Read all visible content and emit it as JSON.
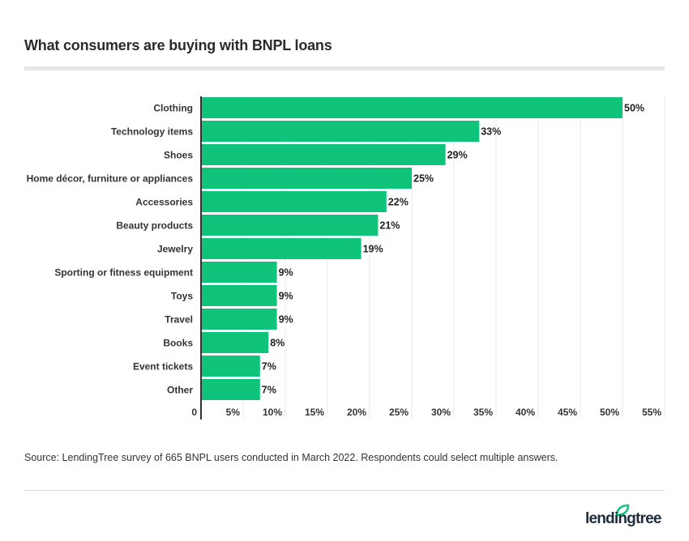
{
  "title": "What consumers are buying with BNPL loans",
  "source": "Source: LendingTree survey of 665 BNPL users conducted in March 2022. Respondents could select multiple answers.",
  "logo": "lendingtree",
  "colors": {
    "bar": "#0fc47a",
    "grid": "#e8e8e8",
    "axis": "#333333"
  },
  "chart_data": {
    "type": "bar",
    "orientation": "horizontal",
    "categories": [
      "Clothing",
      "Technology items",
      "Shoes",
      "Home décor, furniture or appliances",
      "Accessories",
      "Beauty products",
      "Jewelry",
      "Sporting or fitness equipment",
      "Toys",
      "Travel",
      "Books",
      "Event tickets",
      "Other"
    ],
    "values": [
      50,
      33,
      29,
      25,
      22,
      21,
      19,
      9,
      9,
      9,
      8,
      7,
      7
    ],
    "data_labels": [
      "50%",
      "33%",
      "29%",
      "25%",
      "22%",
      "21%",
      "19%",
      "9%",
      "9%",
      "9%",
      "8%",
      "7%",
      "7%"
    ],
    "xlim": [
      0,
      55
    ],
    "x_ticks": [
      0,
      5,
      10,
      15,
      20,
      25,
      30,
      35,
      40,
      45,
      50,
      55
    ],
    "x_tick_labels": [
      "0",
      "5%",
      "10%",
      "15%",
      "20%",
      "25%",
      "30%",
      "35%",
      "40%",
      "45%",
      "50%",
      "55%"
    ],
    "grid": true,
    "legend": "none"
  }
}
